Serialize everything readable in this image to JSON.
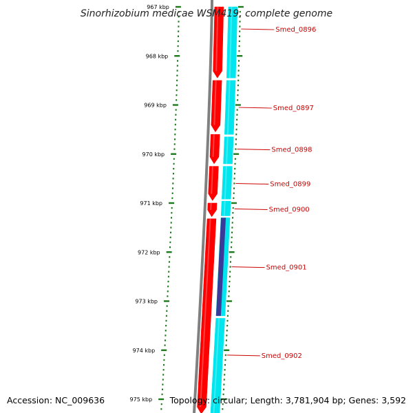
{
  "title": "Sinorhizobium medicae WSM419, complete genome",
  "footer": {
    "accession": "Accession: NC_009636",
    "topology": "Topology: circular; Length: 3,781,904 bp; Genes: 3,592"
  },
  "colors": {
    "background": "#ffffff",
    "backbone": "#808080",
    "forward_strand": "#ff0000",
    "reverse_strand": "#00e5ee",
    "other_feature": "#3a3a99",
    "tick": "#1a7a1a",
    "gene_label": "#cc0000"
  },
  "chart_data": {
    "type": "linear-genome-map",
    "axis_unit": "kbp",
    "ticks": [
      {
        "kbp": 967,
        "label": "967 kbp"
      },
      {
        "kbp": 968,
        "label": "968 kbp"
      },
      {
        "kbp": 969,
        "label": "969 kbp"
      },
      {
        "kbp": 970,
        "label": "970 kbp"
      },
      {
        "kbp": 971,
        "label": "971 kbp"
      },
      {
        "kbp": 972,
        "label": "972 kbp"
      },
      {
        "kbp": 973,
        "label": "973 kbp"
      },
      {
        "kbp": 974,
        "label": "974 kbp"
      },
      {
        "kbp": 975,
        "label": "975 kbp"
      }
    ],
    "forward_genes": [
      {
        "start": 967.0,
        "end": 968.45
      },
      {
        "start": 968.5,
        "end": 969.55
      },
      {
        "start": 969.6,
        "end": 970.2
      },
      {
        "start": 970.25,
        "end": 970.95
      },
      {
        "start": 971.0,
        "end": 971.28
      },
      {
        "start": 971.32,
        "end": 975.3
      }
    ],
    "reverse_genes": [
      {
        "start": 967.0,
        "end": 968.45,
        "name": "Smed_0896"
      },
      {
        "start": 968.5,
        "end": 969.6,
        "name": "Smed_0897"
      },
      {
        "start": 969.65,
        "end": 970.2,
        "name": "Smed_0898"
      },
      {
        "start": 970.25,
        "end": 970.92,
        "name": "Smed_0899"
      },
      {
        "start": 970.96,
        "end": 971.26,
        "name": "Smed_0900"
      },
      {
        "start": 971.3,
        "end": 973.3,
        "name": "Smed_0901"
      },
      {
        "start": 973.35,
        "end": 975.3,
        "name": "Smed_0902"
      }
    ],
    "other_features": [
      {
        "start": 971.3,
        "end": 973.3
      }
    ],
    "gene_labels": [
      {
        "name": "Smed_0896",
        "kbp": 967.45
      },
      {
        "name": "Smed_0897",
        "kbp": 969.05
      },
      {
        "name": "Smed_0898",
        "kbp": 969.9
      },
      {
        "name": "Smed_0899",
        "kbp": 970.6
      },
      {
        "name": "Smed_0900",
        "kbp": 971.12
      },
      {
        "name": "Smed_0901",
        "kbp": 972.3
      },
      {
        "name": "Smed_0902",
        "kbp": 974.1
      }
    ]
  }
}
